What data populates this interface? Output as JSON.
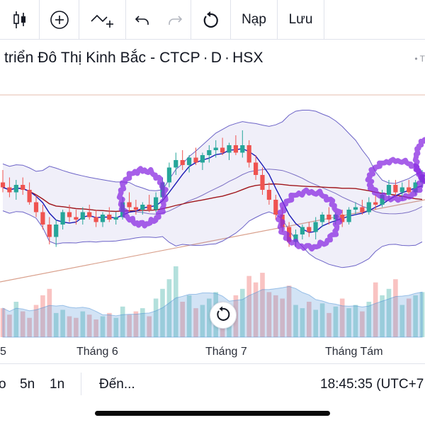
{
  "toolbar": {
    "items": [
      {
        "icon": "candlestick-icon"
      },
      {
        "icon": "add-circle-icon"
      },
      {
        "icon": "indicator-add-icon"
      },
      {
        "icon": "undo-icon"
      },
      {
        "icon": "redo-icon"
      },
      {
        "icon": "reload-icon"
      },
      {
        "label": "Nạp"
      },
      {
        "label": "Lưu"
      }
    ]
  },
  "symbol": {
    "name": "triển Đô Thị Kinh Bắc - CTCP",
    "sep": "·",
    "interval": "D",
    "exchange": "HSX",
    "right_text": "T"
  },
  "chart_data": {
    "type": "candlestick",
    "x_labels": [
      "5",
      "Tháng 6",
      "Tháng 7",
      "Tháng Tám"
    ],
    "colors": {
      "up": "#26a69a",
      "down": "#ef5350",
      "band": "#6c63c7",
      "ma_fast": "#1a1ab5",
      "ma_slow": "#a0161b",
      "trend": "#d9a08c",
      "annotation": "#8a2be2"
    },
    "candles": [
      {
        "o": 10.8,
        "h": 11.3,
        "l": 10.4,
        "c": 10.6
      },
      {
        "o": 10.6,
        "h": 11.0,
        "l": 10.2,
        "c": 10.4
      },
      {
        "o": 10.4,
        "h": 10.9,
        "l": 10.1,
        "c": 10.7
      },
      {
        "o": 10.7,
        "h": 11.0,
        "l": 10.3,
        "c": 10.5
      },
      {
        "o": 10.5,
        "h": 10.8,
        "l": 9.9,
        "c": 10.0
      },
      {
        "o": 10.0,
        "h": 10.3,
        "l": 9.4,
        "c": 9.6
      },
      {
        "o": 9.6,
        "h": 9.9,
        "l": 8.9,
        "c": 9.1
      },
      {
        "o": 9.1,
        "h": 9.4,
        "l": 8.3,
        "c": 8.6
      },
      {
        "o": 8.6,
        "h": 9.3,
        "l": 8.2,
        "c": 9.1
      },
      {
        "o": 9.1,
        "h": 9.7,
        "l": 8.9,
        "c": 9.6
      },
      {
        "o": 9.6,
        "h": 9.9,
        "l": 9.2,
        "c": 9.4
      },
      {
        "o": 9.4,
        "h": 9.7,
        "l": 9.1,
        "c": 9.3
      },
      {
        "o": 9.3,
        "h": 9.8,
        "l": 9.1,
        "c": 9.6
      },
      {
        "o": 9.6,
        "h": 9.9,
        "l": 9.3,
        "c": 9.4
      },
      {
        "o": 9.4,
        "h": 9.7,
        "l": 9.0,
        "c": 9.2
      },
      {
        "o": 9.2,
        "h": 9.6,
        "l": 9.0,
        "c": 9.5
      },
      {
        "o": 9.5,
        "h": 9.8,
        "l": 9.2,
        "c": 9.3
      },
      {
        "o": 9.3,
        "h": 9.6,
        "l": 9.1,
        "c": 9.4
      },
      {
        "o": 9.4,
        "h": 10.2,
        "l": 9.3,
        "c": 10.0
      },
      {
        "o": 10.0,
        "h": 10.4,
        "l": 9.6,
        "c": 9.8
      },
      {
        "o": 9.8,
        "h": 10.1,
        "l": 9.5,
        "c": 9.7
      },
      {
        "o": 9.7,
        "h": 10.0,
        "l": 9.5,
        "c": 9.9
      },
      {
        "o": 9.9,
        "h": 10.3,
        "l": 9.6,
        "c": 9.7
      },
      {
        "o": 9.7,
        "h": 10.4,
        "l": 9.6,
        "c": 10.2
      },
      {
        "o": 10.2,
        "h": 11.0,
        "l": 10.1,
        "c": 10.8
      },
      {
        "o": 10.8,
        "h": 11.6,
        "l": 10.6,
        "c": 11.4
      },
      {
        "o": 11.4,
        "h": 12.0,
        "l": 11.1,
        "c": 11.7
      },
      {
        "o": 11.7,
        "h": 12.1,
        "l": 11.3,
        "c": 11.5
      },
      {
        "o": 11.5,
        "h": 11.9,
        "l": 11.2,
        "c": 11.8
      },
      {
        "o": 11.8,
        "h": 12.2,
        "l": 11.5,
        "c": 11.6
      },
      {
        "o": 11.6,
        "h": 12.0,
        "l": 11.3,
        "c": 11.9
      },
      {
        "o": 11.9,
        "h": 12.3,
        "l": 11.6,
        "c": 12.1
      },
      {
        "o": 12.1,
        "h": 12.5,
        "l": 11.8,
        "c": 12.2
      },
      {
        "o": 12.2,
        "h": 12.6,
        "l": 11.9,
        "c": 12.0
      },
      {
        "o": 12.0,
        "h": 12.4,
        "l": 11.7,
        "c": 12.3
      },
      {
        "o": 12.3,
        "h": 12.7,
        "l": 11.9,
        "c": 12.0
      },
      {
        "o": 12.0,
        "h": 12.9,
        "l": 11.8,
        "c": 12.3
      },
      {
        "o": 12.3,
        "h": 12.5,
        "l": 11.4,
        "c": 11.6
      },
      {
        "o": 11.6,
        "h": 11.9,
        "l": 10.9,
        "c": 11.1
      },
      {
        "o": 11.1,
        "h": 11.4,
        "l": 10.3,
        "c": 10.5
      },
      {
        "o": 10.5,
        "h": 10.8,
        "l": 9.9,
        "c": 10.1
      },
      {
        "o": 10.1,
        "h": 10.3,
        "l": 9.3,
        "c": 9.5
      },
      {
        "o": 9.5,
        "h": 9.8,
        "l": 8.8,
        "c": 9.0
      },
      {
        "o": 9.0,
        "h": 9.2,
        "l": 8.2,
        "c": 8.4
      },
      {
        "o": 8.4,
        "h": 8.9,
        "l": 8.2,
        "c": 8.7
      },
      {
        "o": 8.7,
        "h": 9.1,
        "l": 8.5,
        "c": 9.0
      },
      {
        "o": 9.0,
        "h": 9.2,
        "l": 8.6,
        "c": 8.8
      },
      {
        "o": 8.8,
        "h": 9.4,
        "l": 8.5,
        "c": 9.2
      },
      {
        "o": 9.2,
        "h": 9.6,
        "l": 9.0,
        "c": 9.5
      },
      {
        "o": 9.5,
        "h": 9.8,
        "l": 9.1,
        "c": 9.3
      },
      {
        "o": 9.3,
        "h": 9.6,
        "l": 9.1,
        "c": 9.5
      },
      {
        "o": 9.5,
        "h": 9.7,
        "l": 9.0,
        "c": 9.2
      },
      {
        "o": 9.2,
        "h": 9.8,
        "l": 9.1,
        "c": 9.7
      },
      {
        "o": 9.7,
        "h": 10.0,
        "l": 9.5,
        "c": 9.8
      },
      {
        "o": 9.8,
        "h": 10.1,
        "l": 9.5,
        "c": 9.6
      },
      {
        "o": 9.6,
        "h": 10.2,
        "l": 9.5,
        "c": 10.0
      },
      {
        "o": 10.0,
        "h": 10.3,
        "l": 9.7,
        "c": 9.9
      },
      {
        "o": 9.9,
        "h": 10.5,
        "l": 9.8,
        "c": 10.3
      },
      {
        "o": 10.3,
        "h": 10.9,
        "l": 10.1,
        "c": 10.7
      },
      {
        "o": 10.7,
        "h": 10.9,
        "l": 10.2,
        "c": 10.4
      },
      {
        "o": 10.4,
        "h": 10.8,
        "l": 10.1,
        "c": 10.6
      },
      {
        "o": 10.6,
        "h": 10.9,
        "l": 10.3,
        "c": 10.4
      },
      {
        "o": 10.4,
        "h": 10.9,
        "l": 10.3,
        "c": 10.8
      },
      {
        "o": 10.8,
        "h": 11.3,
        "l": 10.6,
        "c": 11.1
      }
    ],
    "volume": [
      18,
      14,
      22,
      16,
      12,
      20,
      26,
      30,
      15,
      17,
      13,
      12,
      16,
      14,
      11,
      13,
      15,
      12,
      19,
      14,
      16,
      18,
      13,
      24,
      30,
      36,
      44,
      22,
      26,
      18,
      20,
      24,
      28,
      22,
      19,
      26,
      30,
      38,
      34,
      40,
      28,
      26,
      24,
      32,
      20,
      18,
      22,
      17,
      21,
      15,
      19,
      24,
      18,
      20,
      16,
      22,
      34,
      26,
      30,
      36,
      20,
      24,
      26,
      28
    ],
    "annotations": [
      "circle",
      "circle",
      "circle",
      "circle"
    ]
  },
  "reset_icon": "reset-icon",
  "bottom": {
    "ranges": [
      "o",
      "5n",
      "1n"
    ],
    "goto": "Đến...",
    "time": "18:45:35 (UTC+7"
  }
}
